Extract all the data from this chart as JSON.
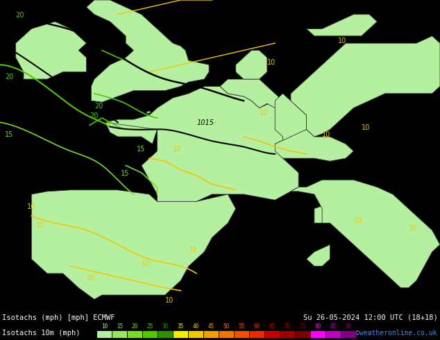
{
  "title_left": "Isotachs (mph) [mph] ECMWF",
  "title_right": "Su 26-05-2024 12:00 UTC (18+18)",
  "subtitle_left": "Isotachs 10m (mph)",
  "credit": "©weatheronline.co.uk",
  "legend_values": [
    10,
    15,
    20,
    25,
    30,
    35,
    40,
    45,
    50,
    55,
    60,
    65,
    70,
    75,
    80,
    85,
    90
  ],
  "legend_colors": [
    "#b4f0a0",
    "#96e664",
    "#78dc28",
    "#50c800",
    "#289600",
    "#f0f000",
    "#f0c800",
    "#f0a000",
    "#f07800",
    "#f05000",
    "#f02800",
    "#c80000",
    "#a00000",
    "#780000",
    "#ff00ff",
    "#c000c0",
    "#800080"
  ],
  "legend_text_colors": [
    "#b4f0a0",
    "#96e664",
    "#78dc28",
    "#50c800",
    "#289600",
    "#f0f000",
    "#f0c800",
    "#f0a000",
    "#f07800",
    "#f05000",
    "#f02800",
    "#c80000",
    "#a00000",
    "#780000",
    "#ff00ff",
    "#c000c0",
    "#800080"
  ],
  "sea_color": "#d8d8d8",
  "land_color": "#b4f0a0",
  "border_color": "#303030",
  "bottom_bg": "#000000",
  "figsize": [
    6.34,
    4.9
  ],
  "dpi": 100,
  "map_extent": [
    -11.5,
    16.5,
    35.5,
    57.0
  ]
}
